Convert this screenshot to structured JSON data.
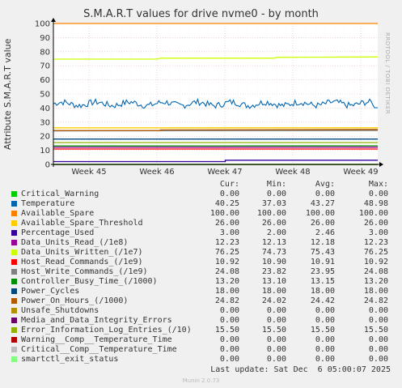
{
  "title": "S.M.A.R.T values for drive nvme0 - by month",
  "ylabel": "Attribute S.M.A.R.T value",
  "watermark": "RRDTOOL / TOBI OETIKER",
  "headers": {
    "cur": "Cur:",
    "min": "Min:",
    "avg": "Avg:",
    "max": "Max:"
  },
  "last_update": "Last update: Sat Dec  6 05:00:07 2025",
  "footer": "Munin 2.0.73",
  "chart_data": {
    "type": "line",
    "title": "S.M.A.R.T values for drive nvme0 - by month",
    "ylabel": "Attribute S.M.A.R.T value",
    "xlabel": "",
    "ylim": [
      0,
      100
    ],
    "yticks": [
      0,
      10,
      20,
      30,
      40,
      50,
      60,
      70,
      80,
      90,
      100
    ],
    "x_tick_labels": [
      "Week 45",
      "Week 46",
      "Week 47",
      "Week 48",
      "Week 49"
    ],
    "grid": true,
    "series": [
      {
        "name": "Critical_Warning",
        "color": "#00cc00",
        "cur": "0.00",
        "min": "0.00",
        "avg": "0.00",
        "max": "0.00"
      },
      {
        "name": "Temperature",
        "color": "#0066b3",
        "cur": "40.25",
        "min": "37.03",
        "avg": "43.27",
        "max": "48.98"
      },
      {
        "name": "Available_Spare",
        "color": "#ff8000",
        "cur": "100.00",
        "min": "100.00",
        "avg": "100.00",
        "max": "100.00"
      },
      {
        "name": "Available_Spare_Threshold",
        "color": "#ffcc00",
        "cur": "26.00",
        "min": "26.00",
        "avg": "26.00",
        "max": "26.00"
      },
      {
        "name": "Percentage_Used",
        "color": "#330099",
        "cur": "3.00",
        "min": "2.00",
        "avg": "2.46",
        "max": "3.00"
      },
      {
        "name": "Data_Units_Read_(/1e8)",
        "color": "#990099",
        "cur": "12.23",
        "min": "12.13",
        "avg": "12.18",
        "max": "12.23"
      },
      {
        "name": "Data_Units_Written_(/1e7)",
        "color": "#ccff00",
        "cur": "76.25",
        "min": "74.73",
        "avg": "75.43",
        "max": "76.25"
      },
      {
        "name": "Host_Read_Commands_(/1e9)",
        "color": "#ff0000",
        "cur": "10.92",
        "min": "10.90",
        "avg": "10.91",
        "max": "10.92"
      },
      {
        "name": "Host_Write_Commands_(/1e9)",
        "color": "#808080",
        "cur": "24.08",
        "min": "23.82",
        "avg": "23.95",
        "max": "24.08"
      },
      {
        "name": "Controller_Busy_Time_(/1000)",
        "color": "#008f00",
        "cur": "13.20",
        "min": "13.10",
        "avg": "13.15",
        "max": "13.20"
      },
      {
        "name": "Power_Cycles",
        "color": "#00487d",
        "cur": "18.00",
        "min": "18.00",
        "avg": "18.00",
        "max": "18.00"
      },
      {
        "name": "Power_On_Hours_(/1000)",
        "color": "#b35a00",
        "cur": "24.82",
        "min": "24.02",
        "avg": "24.42",
        "max": "24.82"
      },
      {
        "name": "Unsafe_Shutdowns",
        "color": "#b38f00",
        "cur": "0.00",
        "min": "0.00",
        "avg": "0.00",
        "max": "0.00"
      },
      {
        "name": "Media_and_Data_Integrity_Errors",
        "color": "#6b006b",
        "cur": "0.00",
        "min": "0.00",
        "avg": "0.00",
        "max": "0.00"
      },
      {
        "name": "Error_Information_Log_Entries_(/10)",
        "color": "#8fb300",
        "cur": "15.50",
        "min": "15.50",
        "avg": "15.50",
        "max": "15.50"
      },
      {
        "name": "Warning__Comp__Temperature_Time",
        "color": "#b30000",
        "cur": "0.00",
        "min": "0.00",
        "avg": "0.00",
        "max": "0.00"
      },
      {
        "name": "Critical__Comp__Temperature_Time",
        "color": "#bebebe",
        "cur": "0.00",
        "min": "0.00",
        "avg": "0.00",
        "max": "0.00"
      },
      {
        "name": "smartctl_exit_status",
        "color": "#80ff80",
        "cur": "0.00",
        "min": "0.00",
        "avg": "0.00",
        "max": "0.00"
      }
    ]
  }
}
